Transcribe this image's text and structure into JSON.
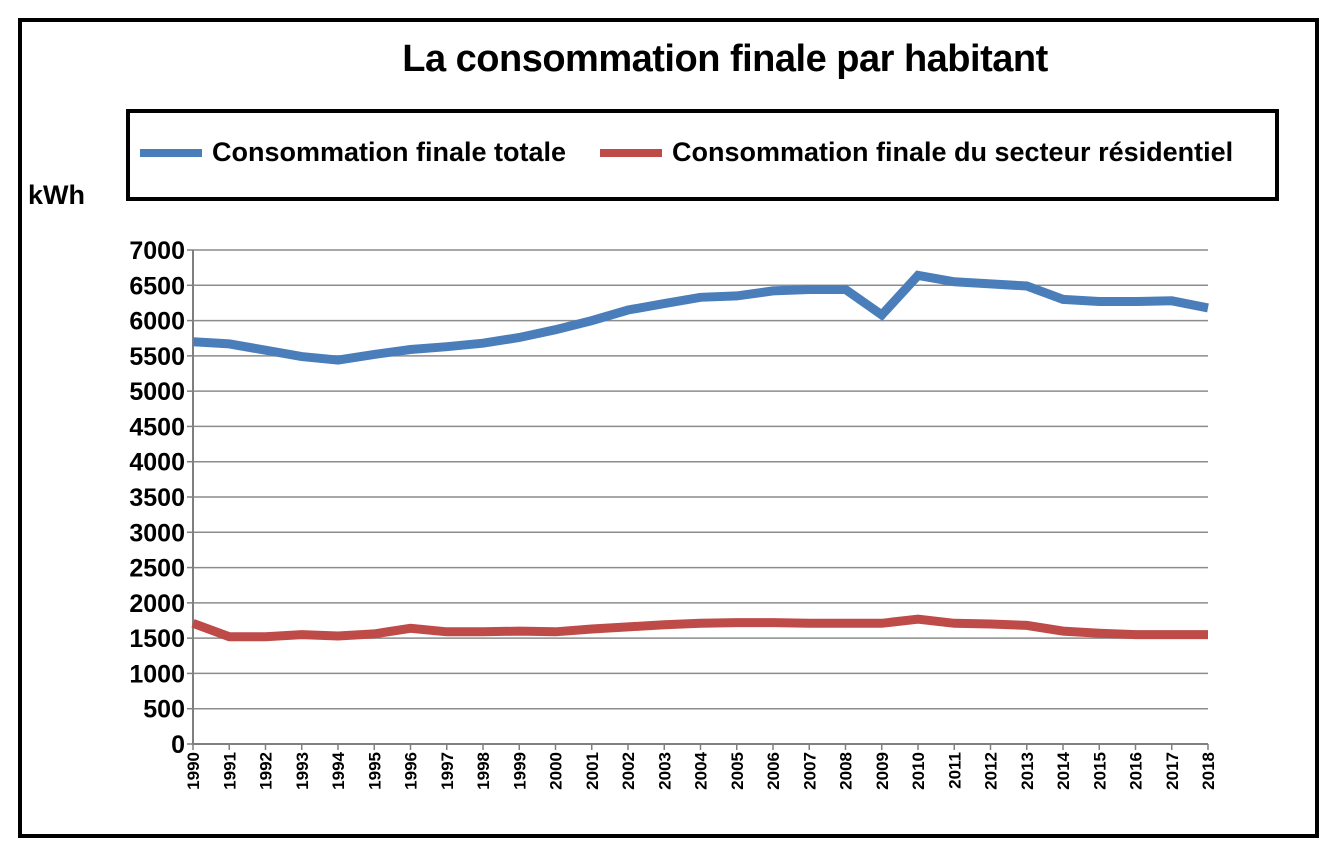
{
  "chart_data": {
    "type": "line",
    "title": "La consommation finale par habitant",
    "ylabel": "kWh",
    "xlabel": "",
    "ylim": [
      0,
      7000
    ],
    "y_ticks": [
      0,
      500,
      1000,
      1500,
      2000,
      2500,
      3000,
      3500,
      4000,
      4500,
      5000,
      5500,
      6000,
      6500,
      7000
    ],
    "grid": true,
    "legend_position": "top",
    "x": [
      "1990",
      "1991",
      "1992",
      "1993",
      "1994",
      "1995",
      "1996",
      "1997",
      "1998",
      "1999",
      "2000",
      "2001",
      "2002",
      "2003",
      "2004",
      "2005",
      "2006",
      "2007",
      "2008",
      "2009",
      "2010",
      "2011",
      "2012",
      "2013",
      "2014",
      "2015",
      "2016",
      "2017",
      "2018"
    ],
    "series": [
      {
        "name": "Consommation finale totale",
        "color": "#4a7ebb",
        "values": [
          5700,
          5670,
          5580,
          5490,
          5440,
          5520,
          5590,
          5630,
          5680,
          5760,
          5870,
          6000,
          6150,
          6240,
          6330,
          6350,
          6420,
          6440,
          6440,
          6080,
          6640,
          6550,
          6520,
          6490,
          6300,
          6270,
          6270,
          6280,
          6180
        ]
      },
      {
        "name": "Consommation finale du secteur résidentiel",
        "color": "#be4b48",
        "values": [
          1710,
          1520,
          1520,
          1550,
          1530,
          1560,
          1640,
          1590,
          1590,
          1600,
          1590,
          1630,
          1660,
          1690,
          1710,
          1720,
          1720,
          1710,
          1710,
          1710,
          1770,
          1710,
          1700,
          1680,
          1600,
          1570,
          1550,
          1550,
          1550
        ]
      }
    ]
  }
}
